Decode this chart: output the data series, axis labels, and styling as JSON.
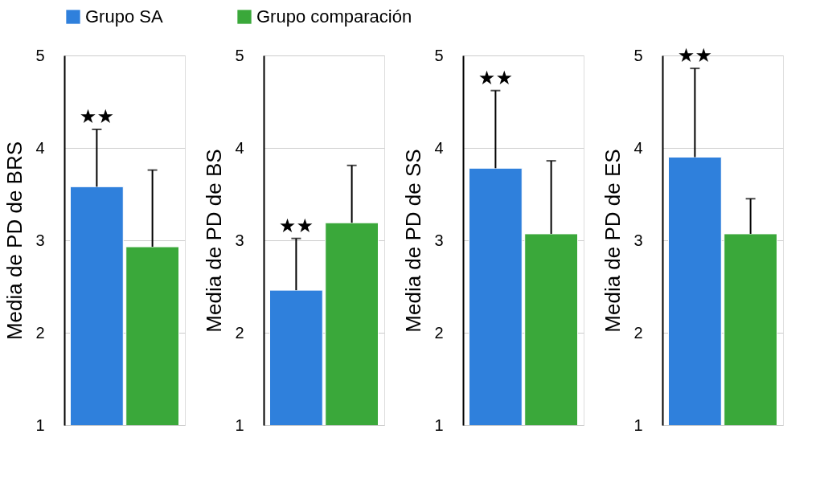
{
  "chart_data": [
    {
      "type": "bar",
      "ylabel": "Media de PD de BRS",
      "categories": [
        null
      ],
      "ylim": [
        1,
        5
      ],
      "yticks": [
        1,
        2,
        3,
        4,
        5
      ],
      "grid": "y",
      "tick_labels": "y",
      "legend": "top",
      "series": [
        {
          "name": "Grupo SA",
          "color": "#2f80dc",
          "values": [
            3.58
          ],
          "errors": [
            [
              3.58,
              4.2
            ]
          ]
        },
        {
          "name": "Grupo comparación",
          "color": "#3aa83a",
          "values": [
            2.93
          ],
          "errors": [
            [
              2.93,
              3.76
            ]
          ]
        }
      ],
      "annotations": [
        "★★"
      ]
    },
    {
      "type": "bar",
      "ylabel": "Media de PD de BS",
      "categories": [
        null
      ],
      "ylim": [
        1,
        5
      ],
      "yticks": [
        1,
        2,
        3,
        4,
        5
      ],
      "grid": "y",
      "tick_labels": "y",
      "series": [
        {
          "color": "#2f80dc",
          "values": [
            2.46
          ],
          "errors": [
            [
              2.46,
              3.02
            ]
          ]
        },
        {
          "color": "#3aa83a",
          "values": [
            3.19
          ],
          "errors": [
            [
              3.19,
              3.81
            ]
          ]
        }
      ],
      "annotations": [
        "★★"
      ]
    },
    {
      "type": "bar",
      "ylabel": "Media de PD de SS",
      "categories": [
        null
      ],
      "ylim": [
        1,
        5
      ],
      "yticks": [
        1,
        2,
        3,
        4,
        5
      ],
      "grid": "y",
      "tick_labels": "y",
      "series": [
        {
          "color": "#2f80dc",
          "values": [
            3.78
          ],
          "errors": [
            [
              3.78,
              4.62
            ]
          ]
        },
        {
          "color": "#3aa83a",
          "values": [
            3.07
          ],
          "errors": [
            [
              3.07,
              3.86
            ]
          ]
        }
      ],
      "annotations": [
        "★★"
      ]
    },
    {
      "type": "bar",
      "ylabel": "Media de PD de ES",
      "categories": [
        null
      ],
      "ylim": [
        1,
        5
      ],
      "yticks": [
        1,
        2,
        3,
        4,
        5
      ],
      "grid": "y",
      "tick_labels": "y",
      "series": [
        {
          "color": "#2f80dc",
          "values": [
            3.9
          ],
          "errors": [
            [
              3.9,
              4.86
            ]
          ]
        },
        {
          "color": "#3aa83a",
          "values": [
            3.07
          ],
          "errors": [
            [
              3.07,
              3.45
            ]
          ]
        }
      ],
      "annotations": [
        "★★"
      ]
    }
  ]
}
